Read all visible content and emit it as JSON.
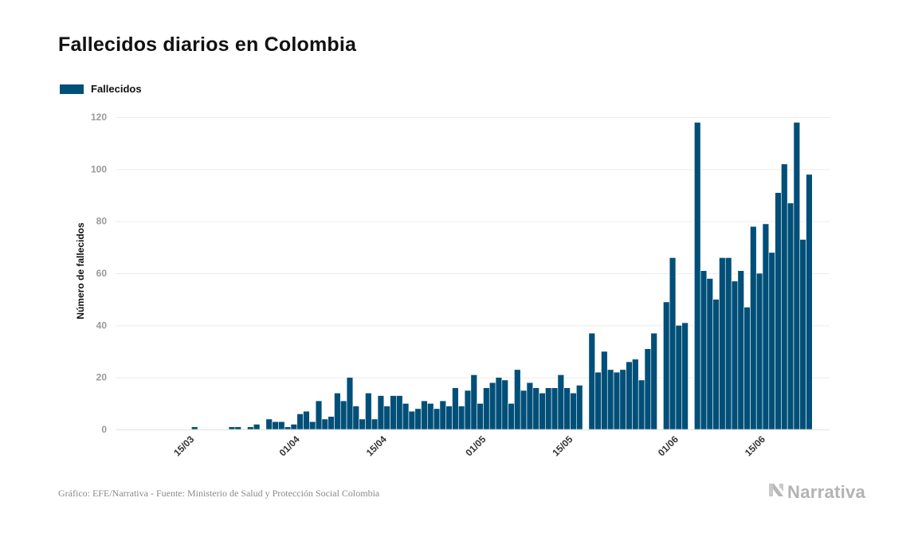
{
  "chart_data": {
    "type": "bar",
    "title": "Fallecidos diarios en Colombia",
    "ylabel": "Número de fallecidos",
    "xlabel": "",
    "ylim": [
      0,
      120
    ],
    "yticks": [
      0,
      20,
      40,
      60,
      80,
      100,
      120
    ],
    "grid": true,
    "legend": {
      "placement": "top-left",
      "entries": [
        "Fallecidos"
      ]
    },
    "x_start_date": "2020-03-07",
    "xtick_labels": [
      {
        "label": "15/03",
        "day_index": 8
      },
      {
        "label": "01/04",
        "day_index": 25
      },
      {
        "label": "15/04",
        "day_index": 39
      },
      {
        "label": "01/05",
        "day_index": 55
      },
      {
        "label": "15/05",
        "day_index": 69
      },
      {
        "label": "01/06",
        "day_index": 86
      },
      {
        "label": "15/06",
        "day_index": 100
      }
    ],
    "series": [
      {
        "name": "Fallecidos",
        "color": "#004f78",
        "values": [
          0,
          0,
          0,
          0,
          0,
          0,
          0,
          0,
          1,
          0,
          0,
          0,
          0,
          0,
          1,
          1,
          0,
          1,
          2,
          0,
          4,
          3,
          3,
          1,
          2,
          6,
          7,
          3,
          11,
          4,
          5,
          14,
          11,
          20,
          9,
          4,
          14,
          4,
          13,
          9,
          13,
          13,
          10,
          7,
          8,
          11,
          10,
          8,
          11,
          9,
          16,
          9,
          15,
          21,
          10,
          16,
          18,
          20,
          19,
          10,
          23,
          15,
          18,
          16,
          14,
          16,
          16,
          21,
          16,
          14,
          17,
          0,
          37,
          22,
          30,
          23,
          22,
          23,
          26,
          27,
          19,
          31,
          37,
          0,
          49,
          66,
          40,
          41,
          0,
          118,
          61,
          58,
          50,
          66,
          66,
          57,
          61,
          47,
          78,
          60,
          79,
          68,
          91,
          102,
          87,
          118,
          73,
          98
        ]
      }
    ]
  },
  "source": "Gráfico: EFE/Narrativa - Fuente: Ministerio de Salud y Protección Social Colombia",
  "brand": {
    "label": "Narrativa",
    "icon": "narrativa-logo-icon"
  }
}
